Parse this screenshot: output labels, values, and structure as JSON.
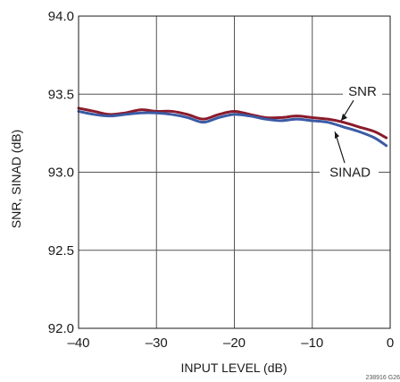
{
  "chart_data": {
    "type": "line",
    "title": "",
    "xlabel": "INPUT LEVEL (dB)",
    "ylabel": "SNR, SINAD (dB)",
    "xlim": [
      -40,
      0
    ],
    "ylim": [
      92.0,
      94.0
    ],
    "x_ticks": [
      -40,
      -30,
      -20,
      -10,
      0
    ],
    "x_tick_labels": [
      "–40",
      "–30",
      "–20",
      "–10",
      "0"
    ],
    "y_ticks": [
      92.0,
      92.5,
      93.0,
      93.5,
      94.0
    ],
    "y_tick_labels": [
      "92.0",
      "92.5",
      "93.0",
      "93.5",
      "94.0"
    ],
    "grid": true,
    "series": [
      {
        "name": "SNR",
        "color": "#8b1a2b",
        "x": [
          -40,
          -38,
          -36,
          -34,
          -32,
          -30,
          -28,
          -26,
          -24,
          -22,
          -20,
          -18,
          -16,
          -14,
          -12,
          -10,
          -8,
          -6,
          -4,
          -2,
          -0.5
        ],
        "y": [
          93.41,
          93.39,
          93.37,
          93.38,
          93.4,
          93.39,
          93.39,
          93.37,
          93.34,
          93.37,
          93.39,
          93.37,
          93.35,
          93.35,
          93.36,
          93.35,
          93.34,
          93.32,
          93.29,
          93.26,
          93.22
        ]
      },
      {
        "name": "SINAD",
        "color": "#3b5ba5",
        "x": [
          -40,
          -38,
          -36,
          -34,
          -32,
          -30,
          -28,
          -26,
          -24,
          -22,
          -20,
          -18,
          -16,
          -14,
          -12,
          -10,
          -8,
          -6,
          -4,
          -2,
          -0.5
        ],
        "y": [
          93.39,
          93.37,
          93.36,
          93.37,
          93.38,
          93.38,
          93.37,
          93.35,
          93.32,
          93.35,
          93.37,
          93.36,
          93.34,
          93.33,
          93.34,
          93.33,
          93.32,
          93.29,
          93.26,
          93.22,
          93.17
        ]
      }
    ],
    "annotations": [
      {
        "text": "SNR",
        "series": "SNR"
      },
      {
        "text": "SINAD",
        "series": "SINAD"
      }
    ],
    "figure_id": "238916 G26"
  }
}
